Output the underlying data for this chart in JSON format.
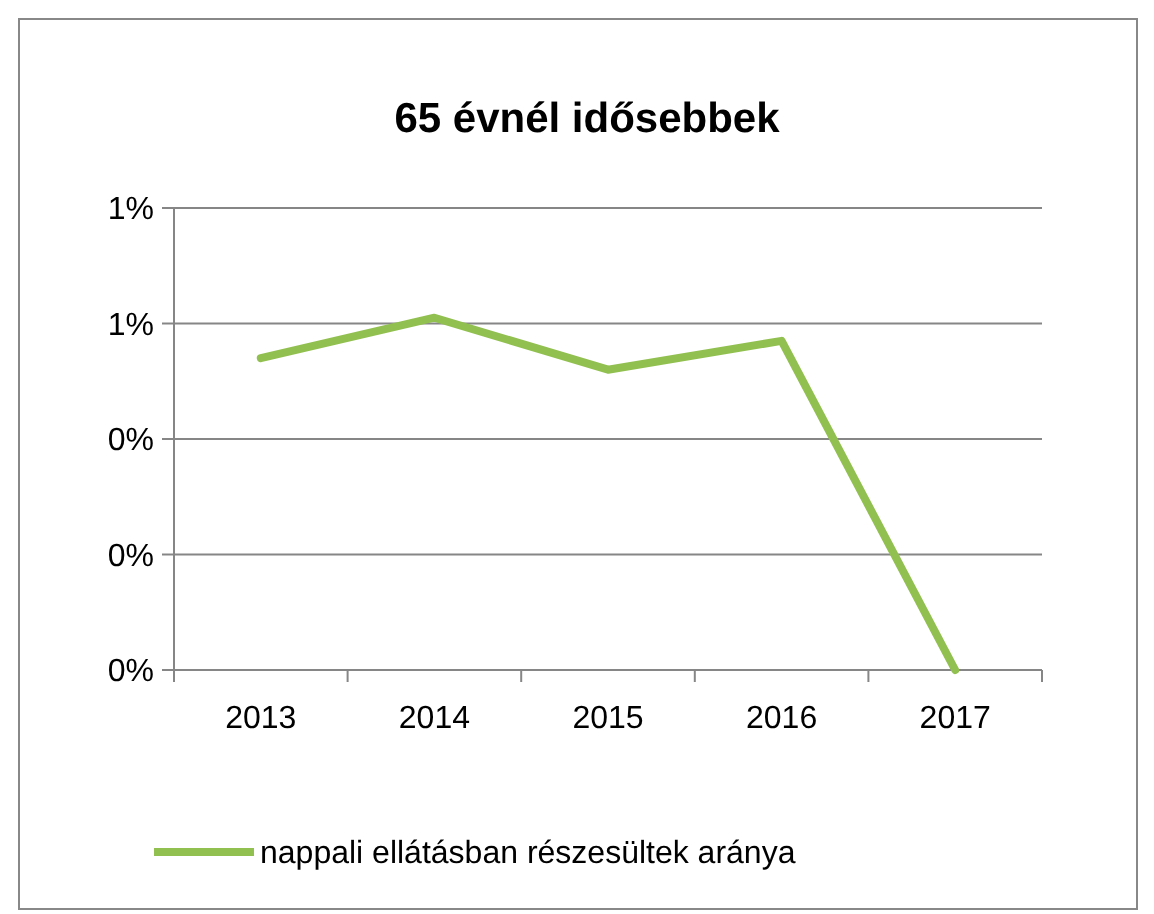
{
  "chart_data": {
    "type": "line",
    "title": "65 évnél idősebbek",
    "categories": [
      "2013",
      "2014",
      "2015",
      "2016",
      "2017"
    ],
    "series": [
      {
        "name": "nappali ellátásban részesültek aránya",
        "color": "#92c050",
        "values": [
          0.54,
          0.61,
          0.52,
          0.57,
          0
        ]
      }
    ],
    "ylim": [
      0,
      0.8
    ],
    "yticks": [
      {
        "value": 0,
        "label": "0%"
      },
      {
        "value": 0.2,
        "label": "0%"
      },
      {
        "value": 0.4,
        "label": "0%"
      },
      {
        "value": 0.6,
        "label": "1%"
      },
      {
        "value": 0.8,
        "label": "1%"
      }
    ],
    "grid": "y",
    "legend": "bottom",
    "marker": "none",
    "line_style": "solid"
  }
}
